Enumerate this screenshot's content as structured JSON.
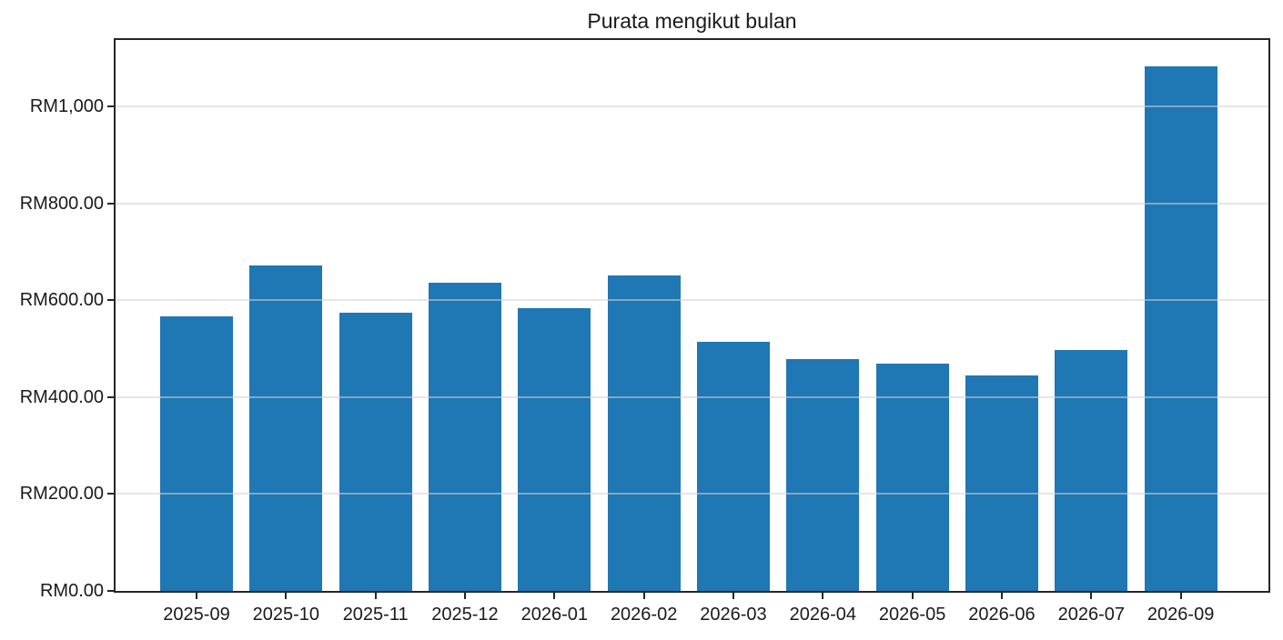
{
  "chart_data": {
    "type": "bar",
    "title": "Purata mengikut bulan",
    "categories": [
      "2025-09",
      "2025-10",
      "2025-11",
      "2025-12",
      "2026-01",
      "2026-02",
      "2026-03",
      "2026-04",
      "2026-05",
      "2026-06",
      "2026-07",
      "2026-09"
    ],
    "values": [
      566,
      672,
      575,
      636,
      583,
      651,
      514,
      478,
      469,
      445,
      497,
      1082
    ],
    "xlabel": "",
    "ylabel": "",
    "ylim": [
      0,
      1137
    ],
    "y_axis": {
      "ticks": [
        0,
        200,
        400,
        600,
        800,
        1000
      ],
      "tick_labels": [
        "RM0.00",
        "RM200.00",
        "RM400.00",
        "RM600.00",
        "RM800.00",
        "RM1,000"
      ]
    },
    "grid": "horizontal",
    "legend": "none",
    "colors": {
      "bar": "#1f77b4",
      "spine": "#262626",
      "gridline": "#e6e6e6",
      "text": "#1a1a1a",
      "background": "#ffffff"
    }
  }
}
